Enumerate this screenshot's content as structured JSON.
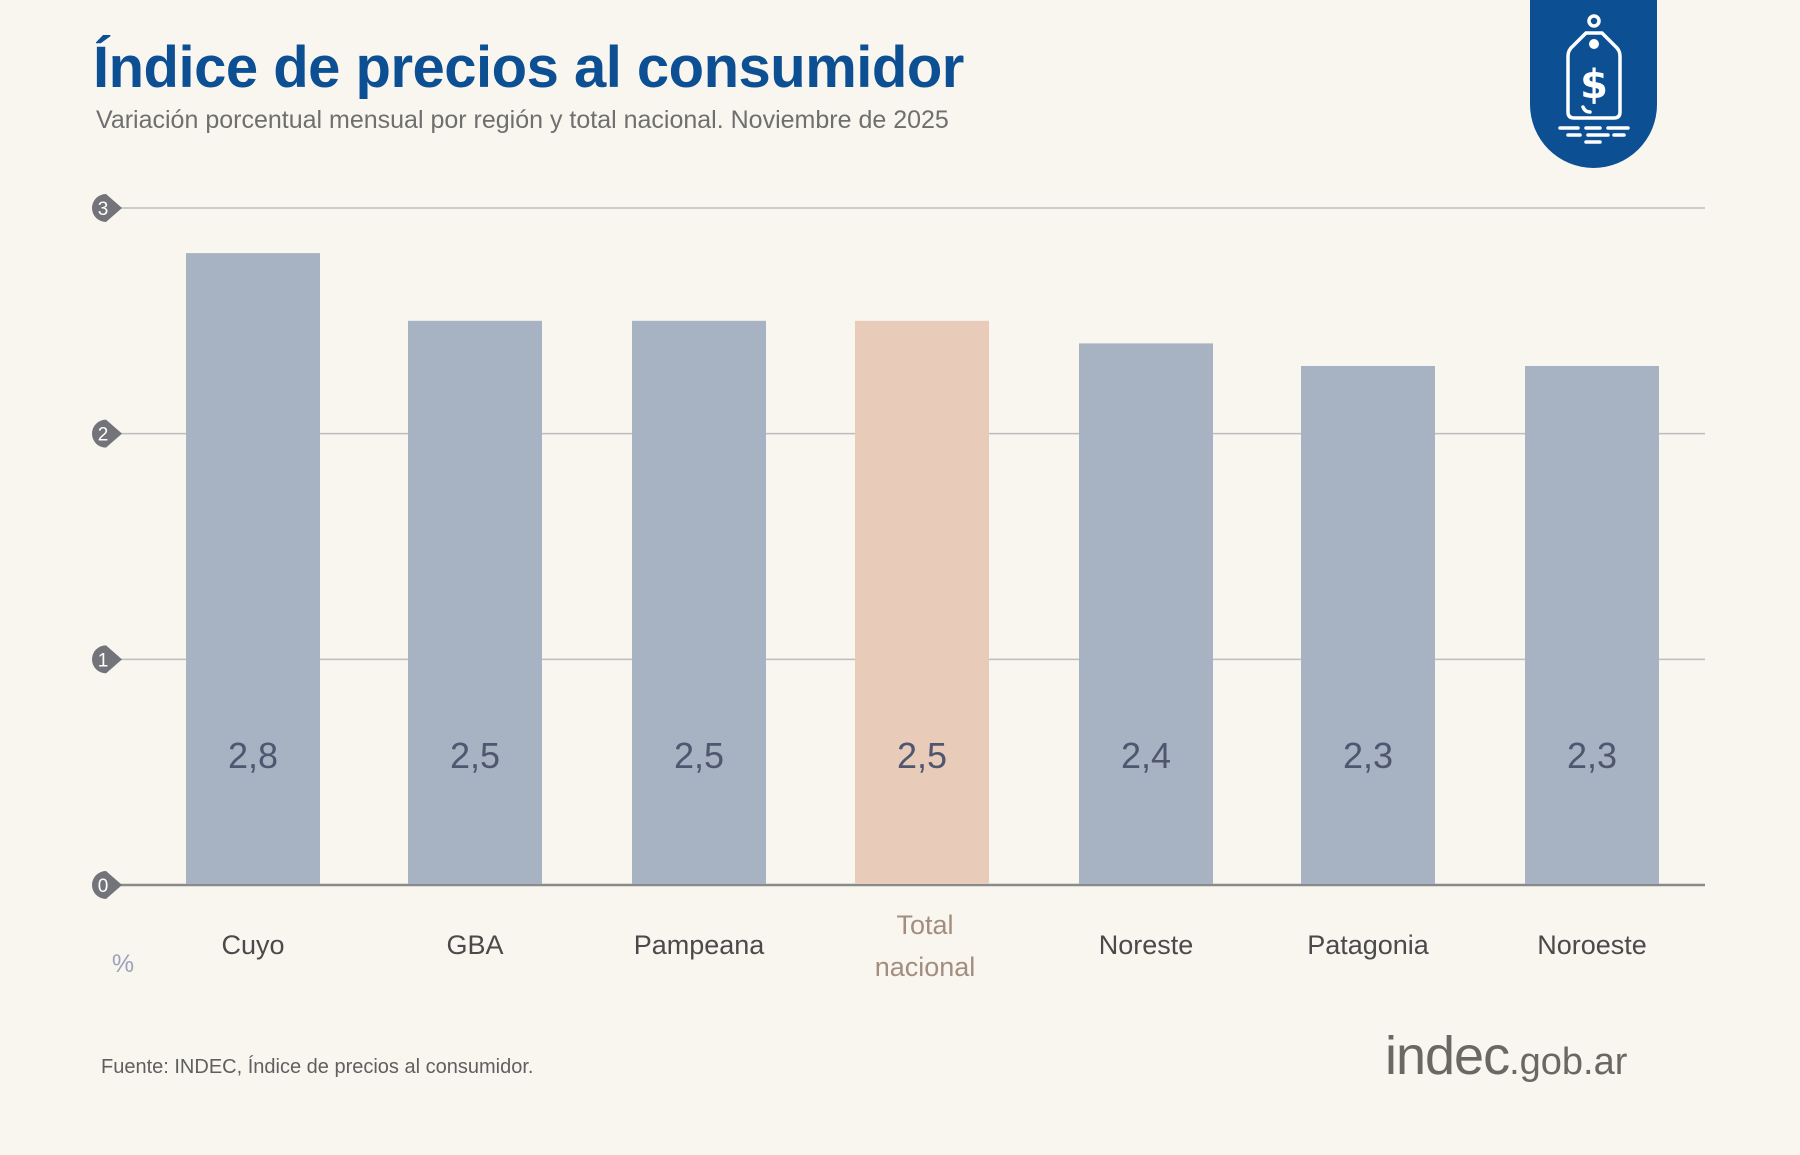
{
  "title": "Índice de precios al consumidor",
  "subtitle": "Variación porcentual mensual por región y total nacional. Noviembre de 2025",
  "source": "Fuente: INDEC, Índice de precios al consumidor.",
  "brand": {
    "main": "indec",
    "domain": ".gob.ar"
  },
  "badge_icon": "price-tag-dollar-icon",
  "chart_data": {
    "type": "bar",
    "categories": [
      "Cuyo",
      "GBA",
      "Pampeana",
      "Total nacional",
      "Noreste",
      "Patagonia",
      "Noroeste"
    ],
    "values": [
      2.8,
      2.5,
      2.5,
      2.5,
      2.4,
      2.3,
      2.3
    ],
    "data_labels": [
      "2,8",
      "2,5",
      "2,5",
      "2,5",
      "2,4",
      "2,3",
      "2,3"
    ],
    "highlight_category": "Total nacional",
    "ylabel": "%",
    "ylim": [
      0,
      3
    ],
    "yticks": [
      "0",
      "1",
      "2",
      "3"
    ],
    "grid": true,
    "colors": {
      "bar": "#a7b2c3",
      "highlight": "#e8cbb9",
      "label": "#4f5670",
      "highlight_text": "#a28d7f",
      "axis": "#7a7a7a",
      "tick_marker": "#73737a"
    }
  }
}
